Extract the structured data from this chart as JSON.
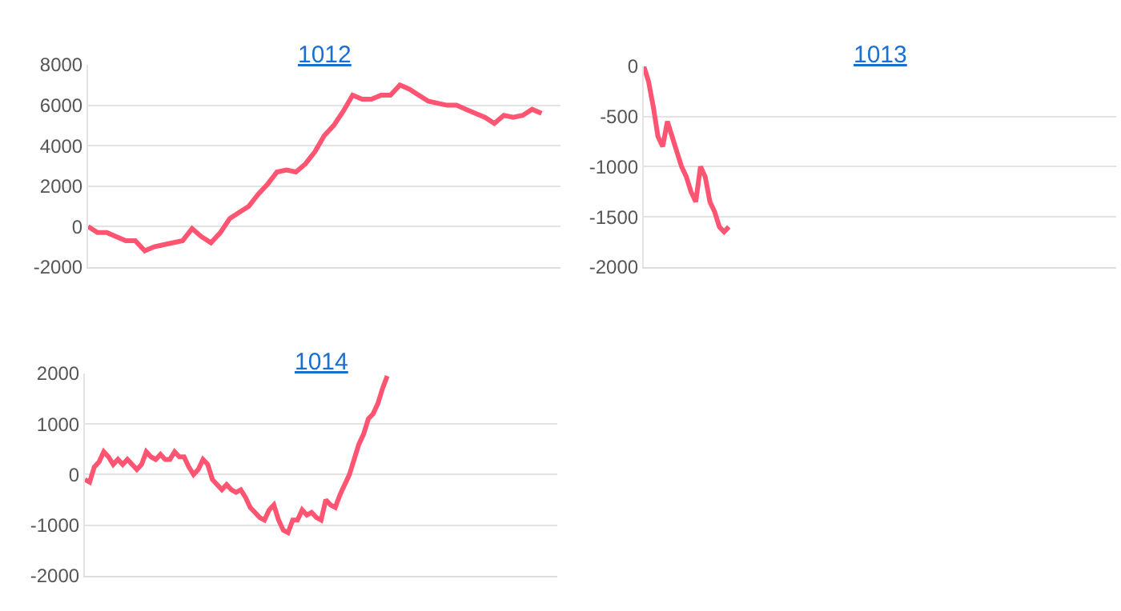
{
  "chart_data": [
    {
      "type": "line",
      "title": "1012",
      "color": "#ff5572",
      "grid": "y",
      "tick_labels": "y",
      "ylim": [
        -2000,
        8000
      ],
      "yticks": [
        -2000,
        0,
        2000,
        4000,
        6000,
        8000
      ],
      "categories": [
        null,
        null,
        null,
        null,
        null,
        null,
        null,
        null,
        null,
        null,
        null,
        null,
        null,
        null,
        null,
        null,
        null,
        null,
        null,
        null,
        null,
        null,
        null,
        null,
        null,
        null,
        null,
        null,
        null,
        null,
        null,
        null,
        null,
        null,
        null,
        null,
        null,
        null,
        null,
        null,
        null,
        null,
        null,
        null,
        null,
        null,
        null,
        null,
        null,
        null,
        null
      ],
      "values": [
        0,
        -300,
        -300,
        -500,
        -700,
        -700,
        -1200,
        -1000,
        -900,
        -800,
        -700,
        -100,
        -500,
        -800,
        -300,
        400,
        700,
        1000,
        1600,
        2100,
        2700,
        2800,
        2700,
        3100,
        3700,
        4500,
        5000,
        5700,
        6500,
        6300,
        6300,
        6500,
        6500,
        7000,
        6800,
        6500,
        6200,
        6100,
        6000,
        6000,
        5800,
        5600,
        5400,
        5100,
        5500,
        5400,
        5500,
        5800,
        5600,
        null,
        null
      ]
    },
    {
      "type": "line",
      "title": "1013",
      "color": "#ff5572",
      "grid": "y",
      "tick_labels": "y",
      "ylim": [
        -2000,
        0
      ],
      "yticks": [
        -2000,
        -1500,
        -1000,
        -500,
        0
      ],
      "categories": [
        null,
        null,
        null,
        null,
        null,
        null,
        null,
        null,
        null,
        null,
        null,
        null,
        null,
        null,
        null,
        null,
        null,
        null,
        null,
        null,
        null,
        null,
        null,
        null,
        null,
        null,
        null,
        null,
        null,
        null,
        null,
        null,
        null,
        null,
        null,
        null,
        null,
        null,
        null,
        null,
        null,
        null,
        null,
        null,
        null,
        null,
        null,
        null,
        null,
        null,
        null,
        null,
        null,
        null,
        null,
        null,
        null,
        null,
        null,
        null,
        null,
        null,
        null,
        null,
        null,
        null,
        null,
        null,
        null,
        null,
        null,
        null,
        null,
        null,
        null,
        null,
        null,
        null,
        null,
        null,
        null,
        null,
        null,
        null,
        null,
        null,
        null,
        null,
        null,
        null,
        null,
        null,
        null,
        null,
        null,
        null,
        null,
        null,
        null,
        null,
        null
      ],
      "values": [
        0,
        -150,
        -400,
        -700,
        -800,
        -550,
        -700,
        -850,
        -1000,
        -1100,
        -1250,
        -1350,
        -1000,
        -1100,
        -1350,
        -1450,
        -1600,
        -1650,
        -1600,
        null,
        null,
        null,
        null,
        null,
        null,
        null,
        null,
        null,
        null,
        null,
        null,
        null,
        null,
        null,
        null,
        null,
        null,
        null,
        null,
        null,
        null,
        null,
        null,
        null,
        null,
        null,
        null,
        null,
        null,
        null,
        null,
        null,
        null,
        null,
        null,
        null,
        null,
        null,
        null,
        null,
        null,
        null,
        null,
        null,
        null,
        null,
        null,
        null,
        null,
        null,
        null,
        null,
        null,
        null,
        null,
        null,
        null,
        null,
        null,
        null,
        null,
        null,
        null,
        null,
        null,
        null,
        null,
        null,
        null,
        null,
        null,
        null,
        null,
        null,
        null,
        null,
        null,
        null,
        null,
        null,
        null
      ]
    },
    {
      "type": "line",
      "title": "1014",
      "color": "#ff5572",
      "grid": "y",
      "tick_labels": "y",
      "ylim": [
        -2000,
        2000
      ],
      "yticks": [
        -2000,
        -1000,
        0,
        1000,
        2000
      ],
      "categories": [
        null,
        null,
        null,
        null,
        null,
        null,
        null,
        null,
        null,
        null,
        null,
        null,
        null,
        null,
        null,
        null,
        null,
        null,
        null,
        null,
        null,
        null,
        null,
        null,
        null,
        null,
        null,
        null,
        null,
        null,
        null,
        null,
        null,
        null,
        null,
        null,
        null,
        null,
        null,
        null,
        null,
        null,
        null,
        null,
        null,
        null,
        null,
        null,
        null,
        null,
        null,
        null,
        null,
        null,
        null,
        null,
        null,
        null,
        null,
        null,
        null,
        null,
        null,
        null,
        null,
        null,
        null,
        null,
        null,
        null,
        null,
        null,
        null,
        null,
        null,
        null,
        null,
        null,
        null,
        null,
        null,
        null,
        null,
        null,
        null,
        null,
        null,
        null,
        null,
        null,
        null,
        null,
        null,
        null,
        null,
        null,
        null,
        null,
        null,
        null,
        null
      ],
      "values": [
        -100,
        -150,
        150,
        250,
        450,
        350,
        200,
        300,
        200,
        300,
        200,
        100,
        200,
        450,
        350,
        300,
        400,
        300,
        300,
        450,
        350,
        350,
        150,
        0,
        100,
        300,
        200,
        -100,
        -200,
        -300,
        -200,
        -300,
        -350,
        -300,
        -450,
        -650,
        -750,
        -850,
        -900,
        -700,
        -600,
        -900,
        -1100,
        -1150,
        -900,
        -900,
        -700,
        -800,
        -750,
        -850,
        -900,
        -500,
        -600,
        -650,
        -400,
        -200,
        0,
        300,
        600,
        800,
        1100,
        1200,
        1400,
        1700,
        1950,
        null,
        null,
        null,
        null,
        null,
        null,
        null,
        null,
        null,
        null,
        null,
        null,
        null,
        null,
        null,
        null,
        null,
        null,
        null,
        null,
        null,
        null,
        null,
        null,
        null,
        null,
        null,
        null,
        null,
        null,
        null,
        null,
        null,
        null,
        null,
        null
      ]
    }
  ]
}
